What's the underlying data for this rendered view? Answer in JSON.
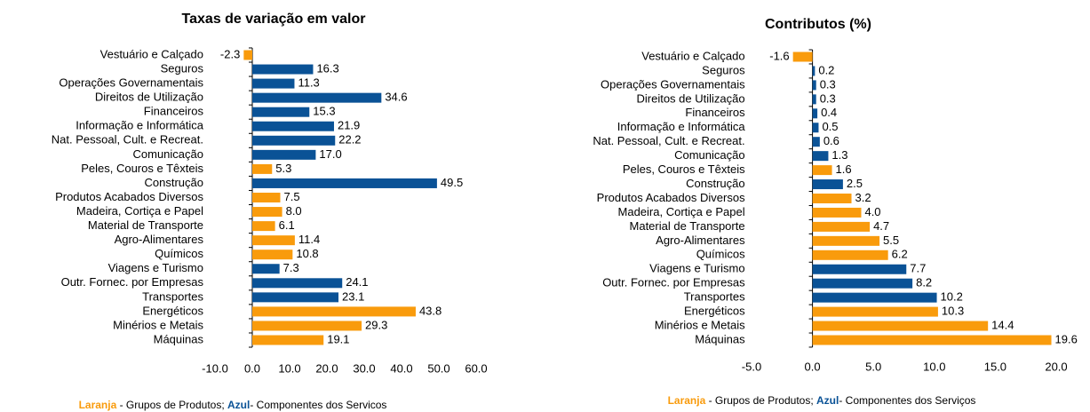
{
  "chart_data": [
    {
      "type": "bar",
      "orientation": "horizontal",
      "title": "Taxas de variação em valor",
      "categories": [
        "Vestuário e Calçado",
        "Seguros",
        "Operações Governamentais",
        "Direitos de Utilização",
        "Financeiros",
        "Informação e Informática",
        "Nat. Pessoal, Cult. e Recreat.",
        "Comunicação",
        "Peles, Couros e Têxteis",
        "Construção",
        "Produtos Acabados Diversos",
        "Madeira, Cortiça e Papel",
        "Material de Transporte",
        "Agro-Alimentares",
        "Químicos",
        "Viagens e Turismo",
        "Outr. Fornec. por Empresas",
        "Transportes",
        "Energéticos",
        "Minérios e Metais",
        "Máquinas"
      ],
      "values": [
        -2.3,
        16.3,
        11.3,
        34.6,
        15.3,
        21.9,
        22.2,
        17.0,
        5.3,
        49.5,
        7.5,
        8.0,
        6.1,
        11.4,
        10.8,
        7.3,
        24.1,
        23.1,
        43.8,
        29.3,
        19.1
      ],
      "value_labels": [
        "-2.3",
        "16.3",
        "11.3",
        "34.6",
        "15.3",
        "21.9",
        "22.2",
        "17.0",
        "5.3",
        "49.5",
        "7.5",
        "8.0",
        "6.1",
        "11.4",
        "10.8",
        "7.3",
        "24.1",
        "23.1",
        "43.8",
        "29.3",
        "19.1"
      ],
      "colors": [
        "#f99b0c",
        "#0a5296",
        "#0a5296",
        "#0a5296",
        "#0a5296",
        "#0a5296",
        "#0a5296",
        "#0a5296",
        "#f99b0c",
        "#0a5296",
        "#f99b0c",
        "#f99b0c",
        "#f99b0c",
        "#f99b0c",
        "#f99b0c",
        "#0a5296",
        "#0a5296",
        "#0a5296",
        "#f99b0c",
        "#f99b0c",
        "#f99b0c"
      ],
      "xlim": [
        -10,
        60
      ],
      "xticks": [
        {
          "value": -10,
          "label": "-10.0"
        },
        {
          "value": 0,
          "label": "0.0"
        },
        {
          "value": 10,
          "label": "10.0"
        },
        {
          "value": 20,
          "label": "20.0"
        },
        {
          "value": 30,
          "label": "30.0"
        },
        {
          "value": 40,
          "label": "40.0"
        },
        {
          "value": 50,
          "label": "50.0"
        },
        {
          "value": 60,
          "label": "60.0"
        }
      ],
      "legend": [
        {
          "text": "Laranja",
          "color": "#f99b0c"
        },
        {
          "text": " - Grupos de Produtos; "
        },
        {
          "text": "Azul",
          "color": "#0a5296"
        },
        {
          "text": "- Componentes dos Servicos"
        }
      ]
    },
    {
      "type": "bar",
      "orientation": "horizontal",
      "title": "Contributos (%)",
      "categories": [
        "Vestuário e Calçado",
        "Seguros",
        "Operações Governamentais",
        "Direitos de Utilização",
        "Financeiros",
        "Informação e Informática",
        "Nat. Pessoal, Cult. e Recreat.",
        "Comunicação",
        "Peles, Couros e Têxteis",
        "Construção",
        "Produtos Acabados Diversos",
        "Madeira, Cortiça e Papel",
        "Material de Transporte",
        "Agro-Alimentares",
        "Químicos",
        "Viagens e Turismo",
        "Outr. Fornec. por Empresas",
        "Transportes",
        "Energéticos",
        "Minérios e Metais",
        "Máquinas"
      ],
      "values": [
        -1.6,
        0.2,
        0.3,
        0.3,
        0.4,
        0.5,
        0.6,
        1.3,
        1.6,
        2.5,
        3.2,
        4.0,
        4.7,
        5.5,
        6.2,
        7.7,
        8.2,
        10.2,
        10.3,
        14.4,
        19.6
      ],
      "value_labels": [
        "-1.6",
        "0.2",
        "0.3",
        "0.3",
        "0.4",
        "0.5",
        "0.6",
        "1.3",
        "1.6",
        "2.5",
        "3.2",
        "4.0",
        "4.7",
        "5.5",
        "6.2",
        "7.7",
        "8.2",
        "10.2",
        "10.3",
        "14.4",
        "19.6"
      ],
      "colors": [
        "#f99b0c",
        "#0a5296",
        "#0a5296",
        "#0a5296",
        "#0a5296",
        "#0a5296",
        "#0a5296",
        "#0a5296",
        "#f99b0c",
        "#0a5296",
        "#f99b0c",
        "#f99b0c",
        "#f99b0c",
        "#f99b0c",
        "#f99b0c",
        "#0a5296",
        "#0a5296",
        "#0a5296",
        "#f99b0c",
        "#f99b0c",
        "#f99b0c"
      ],
      "xlim": [
        -5,
        20
      ],
      "xticks": [
        {
          "value": -5,
          "label": "-5.0"
        },
        {
          "value": 0,
          "label": "0.0"
        },
        {
          "value": 5,
          "label": "5.0"
        },
        {
          "value": 10,
          "label": "10.0"
        },
        {
          "value": 15,
          "label": "15.0"
        },
        {
          "value": 20,
          "label": "20.0"
        }
      ],
      "legend": [
        {
          "text": "Laranja",
          "color": "#f99b0c"
        },
        {
          "text": " - Grupos de Produtos; "
        },
        {
          "text": "Azul",
          "color": "#0a5296"
        },
        {
          "text": "- Componentes dos Serviços"
        }
      ]
    }
  ]
}
